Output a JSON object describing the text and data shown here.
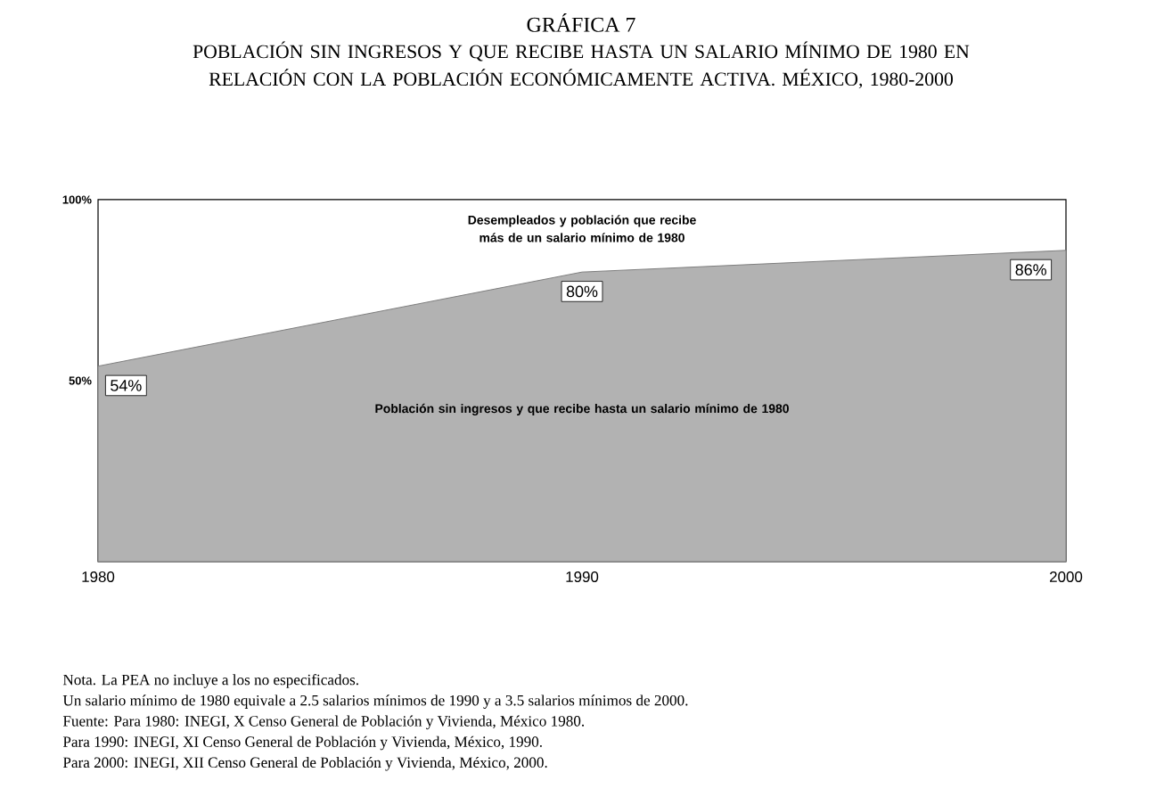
{
  "chart_data": {
    "type": "area",
    "title": "GRÁFICA 7",
    "subtitle": "POBLACIÓN SIN INGRESOS Y QUE RECIBE HASTA UN SALARIO MÍNIMO DE 1980 EN RELACIÓN CON LA POBLACIÓN ECONÓMICAMENTE ACTIVA. MÉXICO, 1980-2000",
    "x": [
      1980,
      1990,
      2000
    ],
    "series": [
      {
        "color": "#b2b2b2",
        "values": [
          54,
          80,
          86
        ],
        "value_labels": [
          "54%",
          "80%",
          "86%"
        ]
      }
    ],
    "xlim": [
      1980,
      2000
    ],
    "ylim": [
      0,
      100
    ],
    "xticks": [
      1980,
      1990,
      2000
    ],
    "yticks": [
      {
        "value": 50,
        "label": "50%"
      },
      {
        "value": 100,
        "label": "100%"
      }
    ],
    "annotations": [
      "Desempleados y población que recibe más de un salario mínimo de 1980",
      "Población sin ingresos y que recibe hasta un salario mínimo de 1980",
      "Nota. La PEA no incluye a los no especificados.",
      "Un salario mínimo de 1980 equivale a 2.5 salarios mínimos de 1990 y a 3.5 salarios mínimos de 2000.",
      "Fuente: Para 1980: INEGI, X Censo General de Población y Vivienda, México 1980.",
      "Para 1990: INEGI, XI Censo General de Población y Vivienda, México, 1990.",
      "Para 2000: INEGI, XII Censo General de Población y Vivienda, México, 2000."
    ]
  }
}
